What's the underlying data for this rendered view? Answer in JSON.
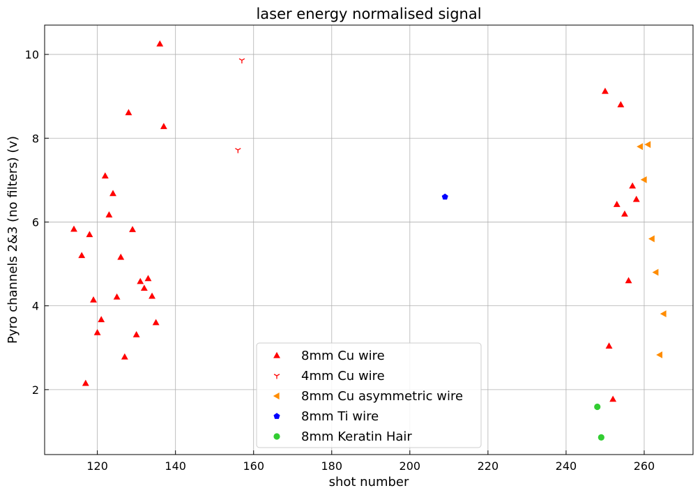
{
  "chart_data": {
    "type": "scatter",
    "title": "laser energy normalised signal",
    "xlabel": "shot number",
    "ylabel": "Pyro channels 2&3 (no filters) (v)",
    "xlim": [
      106.5,
      272.5
    ],
    "ylim": [
      0.45,
      10.7
    ],
    "xticks": [
      120,
      140,
      160,
      180,
      200,
      220,
      240,
      260
    ],
    "yticks": [
      2,
      4,
      6,
      8,
      10
    ],
    "grid": true,
    "legend_position": "lower-center",
    "series": [
      {
        "name": "8mm Cu wire",
        "marker": "triangle-up",
        "color": "#ff0000",
        "points": [
          [
            114,
            5.83
          ],
          [
            116,
            5.2
          ],
          [
            117,
            2.15
          ],
          [
            118,
            5.7
          ],
          [
            119,
            4.14
          ],
          [
            120,
            3.36
          ],
          [
            121,
            3.67
          ],
          [
            122,
            7.1
          ],
          [
            123,
            6.17
          ],
          [
            124,
            6.68
          ],
          [
            125,
            4.21
          ],
          [
            126,
            5.16
          ],
          [
            127,
            2.78
          ],
          [
            128,
            8.61
          ],
          [
            129,
            5.82
          ],
          [
            130,
            3.31
          ],
          [
            131,
            4.58
          ],
          [
            132,
            4.42
          ],
          [
            133,
            4.65
          ],
          [
            134,
            4.23
          ],
          [
            135,
            3.6
          ],
          [
            136,
            10.25
          ],
          [
            137,
            8.28
          ],
          [
            250,
            9.12
          ],
          [
            251,
            3.04
          ],
          [
            252,
            1.77
          ],
          [
            253,
            6.42
          ],
          [
            254,
            8.8
          ],
          [
            255,
            6.19
          ],
          [
            256,
            4.6
          ],
          [
            257,
            6.86
          ],
          [
            258,
            6.54
          ]
        ]
      },
      {
        "name": "4mm Cu wire",
        "marker": "tri-down",
        "color": "#ff0000",
        "points": [
          [
            156,
            7.72
          ],
          [
            157,
            9.86
          ]
        ]
      },
      {
        "name": "8mm Cu asymmetric wire",
        "marker": "triangle-left",
        "color": "#ff8c00",
        "points": [
          [
            259,
            7.8
          ],
          [
            260,
            7.01
          ],
          [
            261,
            7.85
          ],
          [
            262,
            5.6
          ],
          [
            263,
            4.8
          ],
          [
            264,
            2.83
          ],
          [
            265,
            3.81
          ]
        ]
      },
      {
        "name": "8mm Ti wire",
        "marker": "pentagon",
        "color": "#0000ff",
        "points": [
          [
            209,
            6.6
          ]
        ]
      },
      {
        "name": "8mm Keratin Hair",
        "marker": "circle",
        "color": "#32cd32",
        "points": [
          [
            248,
            1.59
          ],
          [
            249,
            0.86
          ]
        ]
      }
    ]
  }
}
